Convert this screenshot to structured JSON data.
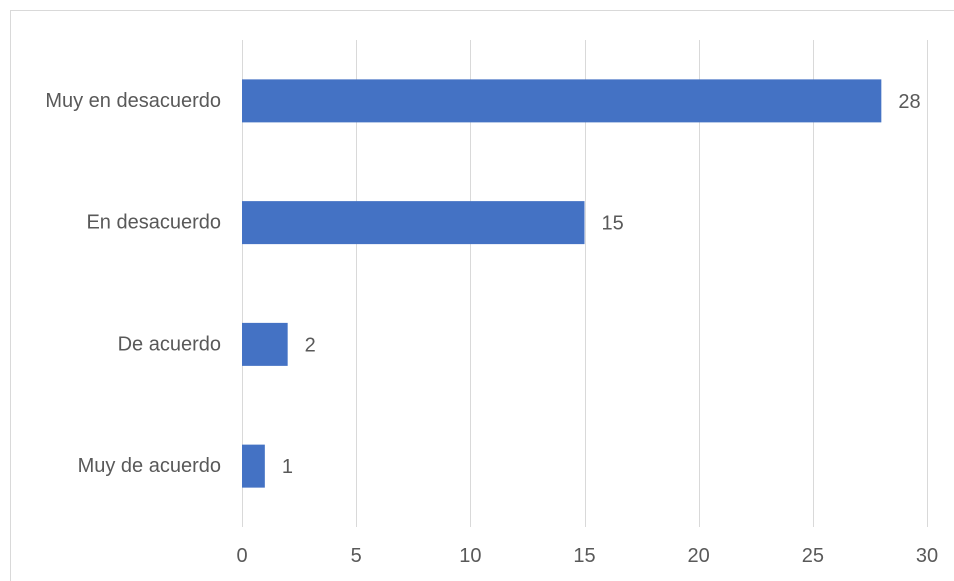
{
  "chart_data": {
    "type": "bar",
    "orientation": "horizontal",
    "categories": [
      "Muy en desacuerdo",
      "En desacuerdo",
      "De acuerdo",
      "Muy de acuerdo"
    ],
    "values": [
      28,
      15,
      2,
      1
    ],
    "xlim": [
      0,
      30
    ],
    "xticks": [
      0,
      5,
      10,
      15,
      20,
      25,
      30
    ],
    "grid": true,
    "data_labels": true,
    "legend": false
  },
  "colors": {
    "bar": "#4472C4",
    "grid": "#D9D9D9",
    "text": "#595959",
    "border": "#D9D9D9",
    "background": "#FFFFFF"
  }
}
